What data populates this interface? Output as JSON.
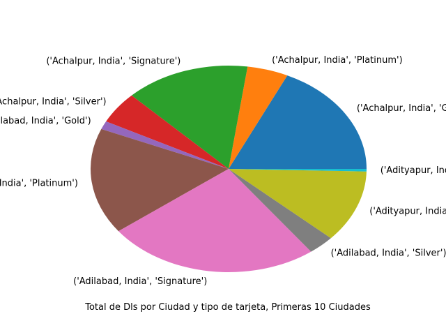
{
  "chart_data": {
    "type": "pie",
    "title": "",
    "xlabel": "Total de Dls por Ciudad y tipo de tarjeta, Primeras 10 Ciudades",
    "start_angle_deg": 0,
    "direction": "counterclockwise",
    "slices": [
      {
        "label": "('Achalpur, India', 'Gold')",
        "value": 18.0,
        "color": "#1f77b4"
      },
      {
        "label": "('Achalpur, India', 'Platinum')",
        "value": 4.8,
        "color": "#ff7f0e"
      },
      {
        "label": "('Achalpur, India', 'Signature')",
        "value": 14.6,
        "color": "#2ca02c"
      },
      {
        "label": "('Achalpur, India', 'Silver')",
        "value": 5.0,
        "color": "#d62728"
      },
      {
        "label": "('Adilabad, India', 'Gold')",
        "value": 1.3,
        "color": "#9467bd"
      },
      {
        "label": "('Adilabad, India', 'Platinum')",
        "value": 16.6,
        "color": "#8c564b"
      },
      {
        "label": "('Adilabad, India', 'Signature')",
        "value": 24.9,
        "color": "#e377c2"
      },
      {
        "label": "('Adilabad, India', 'Silver')",
        "value": 3.1,
        "color": "#7f7f7f"
      },
      {
        "label": "('Adityapur, India', 'Gold')",
        "value": 11.3,
        "color": "#bcbd22"
      },
      {
        "label": "('Adityapur, India', 'Platinum')",
        "value": 0.4,
        "color": "#17becf"
      }
    ]
  }
}
